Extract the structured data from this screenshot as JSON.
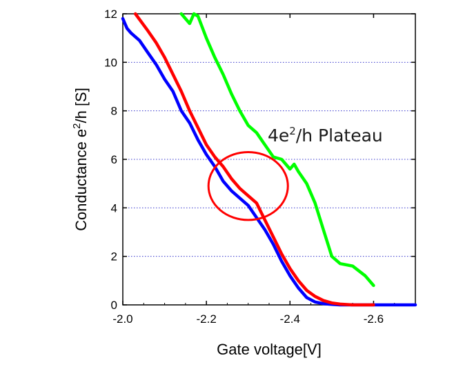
{
  "chart_data": {
    "type": "line",
    "xlabel": "Gate voltage[V]",
    "ylabel_main": "Conductance e",
    "ylabel_sup": "2",
    "ylabel_tail": "/h [S]",
    "xlim": [
      -2.0,
      -2.7
    ],
    "ylim": [
      0,
      12
    ],
    "x_ticks": [
      -2.0,
      -2.2,
      -2.4,
      -2.6
    ],
    "x_tick_labels": [
      "-2.0",
      "-2.2",
      "-2.4",
      "-2.6"
    ],
    "y_ticks": [
      0,
      2,
      4,
      6,
      8,
      10,
      12
    ],
    "y_tick_labels": [
      "0",
      "2",
      "4",
      "6",
      "8",
      "10",
      "12"
    ],
    "grid": "horizontal dotted",
    "annotation": {
      "text_main": "4e",
      "text_sup": "2",
      "text_tail": "/h Plateau",
      "ellipse_center": [
        -2.3,
        4.9
      ],
      "ellipse_rx": 0.095,
      "ellipse_ry": 1.4
    },
    "series": [
      {
        "color": "#0000ff",
        "x": [
          -2.0,
          -2.01,
          -2.02,
          -2.04,
          -2.06,
          -2.08,
          -2.1,
          -2.12,
          -2.14,
          -2.16,
          -2.18,
          -2.2,
          -2.22,
          -2.24,
          -2.26,
          -2.28,
          -2.3,
          -2.32,
          -2.34,
          -2.36,
          -2.38,
          -2.4,
          -2.42,
          -2.44,
          -2.46,
          -2.48,
          -2.5,
          -2.52,
          -2.55,
          -2.6,
          -2.65,
          -2.7
        ],
        "y": [
          11.8,
          11.4,
          11.2,
          10.9,
          10.4,
          9.9,
          9.3,
          8.8,
          8.0,
          7.5,
          6.8,
          6.2,
          5.7,
          5.1,
          4.7,
          4.4,
          4.1,
          3.6,
          3.1,
          2.5,
          1.8,
          1.2,
          0.7,
          0.3,
          0.12,
          0.05,
          0.02,
          0.0,
          0.0,
          0.0,
          0.0,
          0.0
        ]
      },
      {
        "color": "#ff0000",
        "x": [
          -2.03,
          -2.06,
          -2.08,
          -2.1,
          -2.12,
          -2.14,
          -2.16,
          -2.18,
          -2.2,
          -2.22,
          -2.24,
          -2.26,
          -2.28,
          -2.3,
          -2.32,
          -2.34,
          -2.36,
          -2.38,
          -2.4,
          -2.42,
          -2.44,
          -2.46,
          -2.48,
          -2.5,
          -2.52,
          -2.55,
          -2.6
        ],
        "y": [
          12.0,
          11.3,
          10.8,
          10.2,
          9.5,
          8.8,
          8.0,
          7.3,
          6.6,
          6.1,
          5.7,
          5.2,
          4.8,
          4.5,
          4.2,
          3.5,
          2.8,
          2.1,
          1.5,
          1.0,
          0.6,
          0.35,
          0.18,
          0.08,
          0.03,
          0.0,
          0.0
        ]
      },
      {
        "color": "#00ff00",
        "x": [
          -2.14,
          -2.16,
          -2.17,
          -2.18,
          -2.2,
          -2.22,
          -2.24,
          -2.26,
          -2.28,
          -2.3,
          -2.32,
          -2.34,
          -2.36,
          -2.38,
          -2.4,
          -2.41,
          -2.42,
          -2.44,
          -2.46,
          -2.48,
          -2.5,
          -2.52,
          -2.55,
          -2.58,
          -2.6
        ],
        "y": [
          12.0,
          11.6,
          12.0,
          11.9,
          11.0,
          10.2,
          9.5,
          8.7,
          8.0,
          7.4,
          7.1,
          6.6,
          6.1,
          6.0,
          5.6,
          5.8,
          5.5,
          5.0,
          4.2,
          3.1,
          2.0,
          1.7,
          1.6,
          1.2,
          0.8
        ]
      }
    ]
  }
}
